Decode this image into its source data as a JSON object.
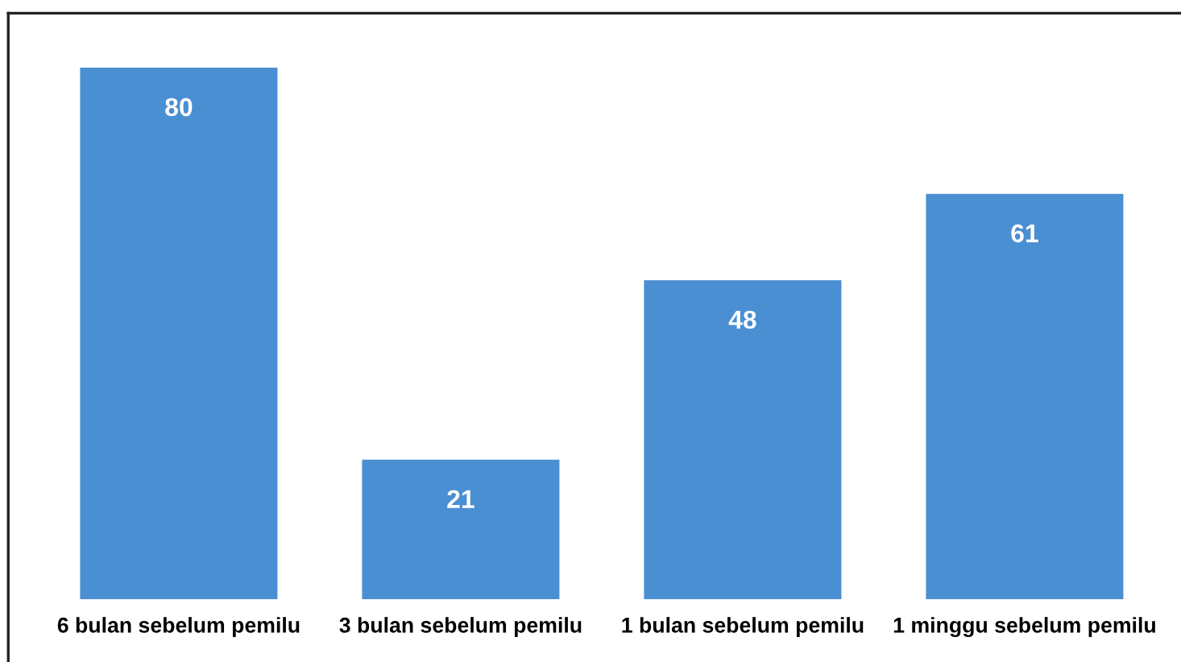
{
  "chart_data": {
    "type": "bar",
    "categories": [
      "6 bulan sebelum pemilu",
      "3 bulan sebelum pemilu",
      "1 bulan sebelum pemilu",
      "1 minggu sebelum pemilu"
    ],
    "values": [
      80,
      21,
      48,
      61
    ],
    "color": "#4a8fd2",
    "data_labels": true
  }
}
